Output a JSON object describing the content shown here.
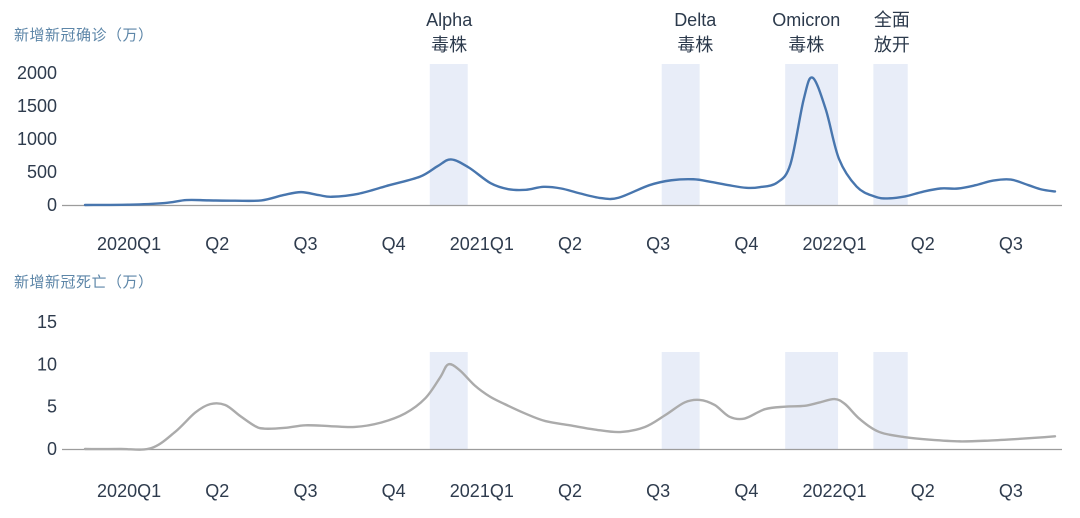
{
  "style": {
    "band_color": "#e8edf8",
    "axis_color": "#9c9c9c",
    "tick_color": "#2e3b4d",
    "title_color": "#5d86a8"
  },
  "annotations": [
    {
      "line1": "Alpha",
      "line2": "毒株",
      "x_quarter": 4.13,
      "band": [
        3.91,
        4.34
      ]
    },
    {
      "line1": "Delta",
      "line2": "毒株",
      "x_quarter": 6.92,
      "band": [
        6.54,
        6.97
      ]
    },
    {
      "line1": "Omicron",
      "line2": "毒株",
      "x_quarter": 8.18,
      "band": [
        7.94,
        8.54
      ]
    },
    {
      "line1": "全面",
      "line2": "放开",
      "x_quarter": 9.15,
      "band": [
        8.94,
        9.33
      ]
    }
  ],
  "chart_data": [
    {
      "type": "line",
      "title": "新增新冠确诊（万）",
      "series_name": "新增新冠确诊",
      "series_color": "#4876ae",
      "xlim": [
        0,
        11
      ],
      "ylim": [
        0,
        2000
      ],
      "yticks": [
        0,
        500,
        1000,
        1500,
        2000
      ],
      "xtick_labels": [
        "2020Q1",
        "Q2",
        "Q3",
        "Q4",
        "2021Q1",
        "Q2",
        "Q3",
        "Q4",
        "2022Q1",
        "Q2",
        "Q3"
      ],
      "grid": false,
      "legend": "none",
      "points": [
        [
          0,
          0
        ],
        [
          0.5,
          5
        ],
        [
          0.9,
          30
        ],
        [
          1.15,
          75
        ],
        [
          1.4,
          70
        ],
        [
          1.7,
          65
        ],
        [
          2.0,
          70
        ],
        [
          2.25,
          150
        ],
        [
          2.45,
          195
        ],
        [
          2.65,
          150
        ],
        [
          2.8,
          125
        ],
        [
          3.1,
          170
        ],
        [
          3.45,
          300
        ],
        [
          3.8,
          430
        ],
        [
          4.0,
          590
        ],
        [
          4.15,
          690
        ],
        [
          4.35,
          570
        ],
        [
          4.6,
          330
        ],
        [
          4.8,
          240
        ],
        [
          5.0,
          230
        ],
        [
          5.2,
          275
        ],
        [
          5.4,
          250
        ],
        [
          5.6,
          180
        ],
        [
          5.85,
          105
        ],
        [
          6.05,
          110
        ],
        [
          6.4,
          300
        ],
        [
          6.65,
          375
        ],
        [
          6.9,
          390
        ],
        [
          7.1,
          350
        ],
        [
          7.3,
          300
        ],
        [
          7.5,
          260
        ],
        [
          7.65,
          270
        ],
        [
          7.85,
          340
        ],
        [
          8.0,
          620
        ],
        [
          8.15,
          1600
        ],
        [
          8.25,
          1930
        ],
        [
          8.4,
          1450
        ],
        [
          8.55,
          700
        ],
        [
          8.75,
          280
        ],
        [
          8.95,
          130
        ],
        [
          9.1,
          100
        ],
        [
          9.3,
          130
        ],
        [
          9.5,
          200
        ],
        [
          9.7,
          250
        ],
        [
          9.9,
          250
        ],
        [
          10.1,
          300
        ],
        [
          10.3,
          370
        ],
        [
          10.5,
          385
        ],
        [
          10.7,
          300
        ],
        [
          10.85,
          235
        ],
        [
          11,
          205
        ]
      ]
    },
    {
      "type": "line",
      "title": "新增新冠死亡（万）",
      "series_name": "新增新冠死亡",
      "series_color": "#ababab",
      "xlim": [
        0,
        11
      ],
      "ylim": [
        0,
        15
      ],
      "yticks": [
        0,
        5,
        10,
        15
      ],
      "xtick_labels": [
        "2020Q1",
        "Q2",
        "Q3",
        "Q4",
        "2021Q1",
        "Q2",
        "Q3",
        "Q4",
        "2022Q1",
        "Q2",
        "Q3"
      ],
      "grid": false,
      "legend": "none",
      "points": [
        [
          0,
          0
        ],
        [
          0.4,
          0
        ],
        [
          0.75,
          0.1
        ],
        [
          1.02,
          2.0
        ],
        [
          1.25,
          4.3
        ],
        [
          1.42,
          5.3
        ],
        [
          1.59,
          5.2
        ],
        [
          1.76,
          3.9
        ],
        [
          1.93,
          2.7
        ],
        [
          2.04,
          2.4
        ],
        [
          2.27,
          2.5
        ],
        [
          2.5,
          2.8
        ],
        [
          2.78,
          2.7
        ],
        [
          3.06,
          2.6
        ],
        [
          3.35,
          3.1
        ],
        [
          3.63,
          4.2
        ],
        [
          3.86,
          6.0
        ],
        [
          4.03,
          8.5
        ],
        [
          4.12,
          10.0
        ],
        [
          4.25,
          9.3
        ],
        [
          4.42,
          7.5
        ],
        [
          4.59,
          6.2
        ],
        [
          4.76,
          5.3
        ],
        [
          4.99,
          4.2
        ],
        [
          5.22,
          3.3
        ],
        [
          5.5,
          2.8
        ],
        [
          5.78,
          2.3
        ],
        [
          6.07,
          2.0
        ],
        [
          6.35,
          2.6
        ],
        [
          6.58,
          4.0
        ],
        [
          6.8,
          5.5
        ],
        [
          6.97,
          5.8
        ],
        [
          7.14,
          5.2
        ],
        [
          7.31,
          3.8
        ],
        [
          7.48,
          3.6
        ],
        [
          7.71,
          4.7
        ],
        [
          7.94,
          5.0
        ],
        [
          8.16,
          5.1
        ],
        [
          8.33,
          5.5
        ],
        [
          8.5,
          5.9
        ],
        [
          8.62,
          5.3
        ],
        [
          8.79,
          3.5
        ],
        [
          9.01,
          2.0
        ],
        [
          9.3,
          1.4
        ],
        [
          9.58,
          1.1
        ],
        [
          9.92,
          0.9
        ],
        [
          10.26,
          1.0
        ],
        [
          10.6,
          1.2
        ],
        [
          10.88,
          1.4
        ],
        [
          11,
          1.5
        ]
      ]
    }
  ]
}
